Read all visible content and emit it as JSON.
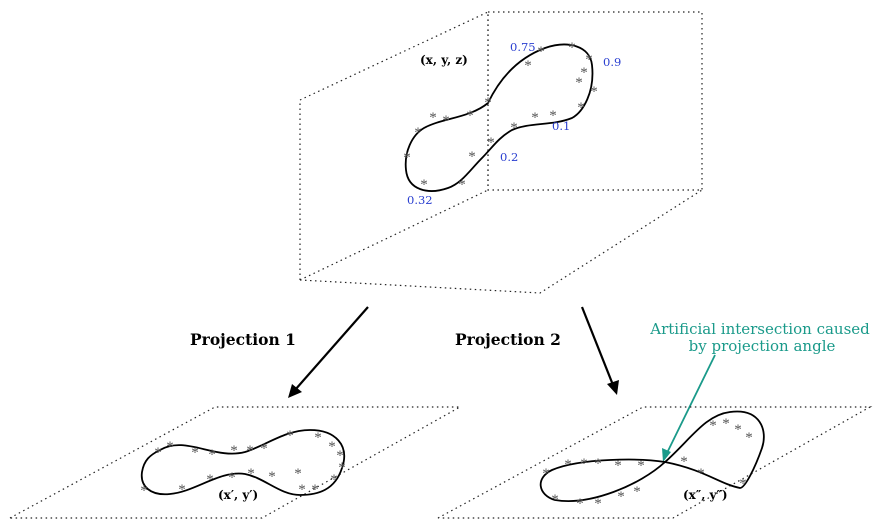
{
  "top_panel": {
    "coord_label": "(x, y, z)",
    "param_labels": [
      "0.75",
      "0.9",
      "0.1",
      "0.2",
      "0.32"
    ]
  },
  "projection_1": {
    "label": "Projection 1",
    "coord_label": "(x′, y′)"
  },
  "projection_2": {
    "label": "Projection 2",
    "coord_label": "(x″, y″)"
  },
  "annotation": {
    "lines": [
      "Artificial intersection caused",
      "by projection angle"
    ],
    "color": "#1a9a8a"
  },
  "colors": {
    "param_labels": "#2a3fd0",
    "annotation": "#1a9a8a"
  },
  "marker_glyph": "*"
}
